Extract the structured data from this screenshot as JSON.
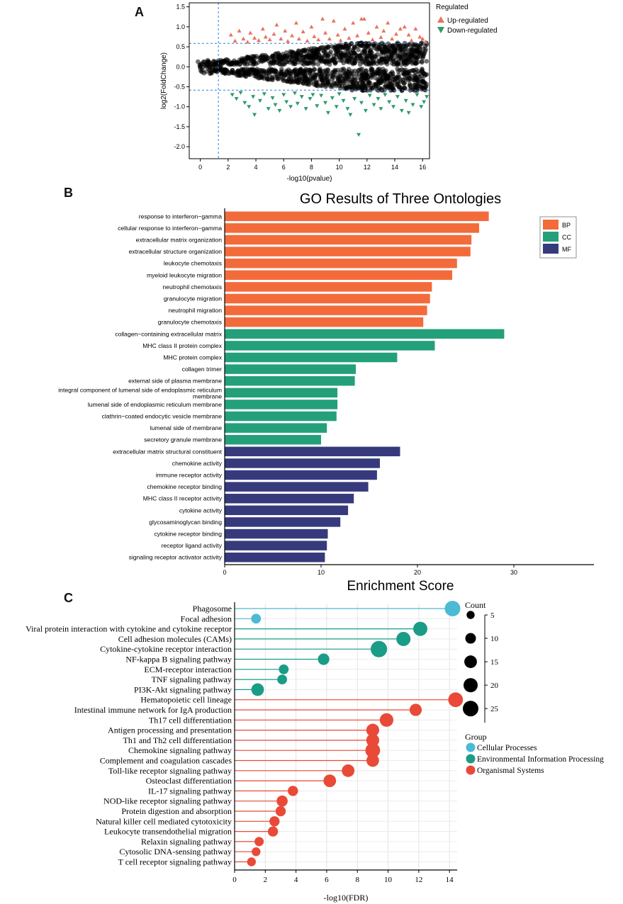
{
  "panel_labels": {
    "a": "A",
    "b": "B",
    "c": "C"
  },
  "chart_data": [
    {
      "id": "A",
      "type": "scatter",
      "title": "",
      "xlabel": "-log10(pvalue)",
      "ylabel": "log2(FoldChange)",
      "xlim": [
        -0.8,
        16.5
      ],
      "ylim": [
        -2.3,
        1.6
      ],
      "xticks": [
        0,
        2,
        4,
        6,
        8,
        10,
        12,
        14,
        16
      ],
      "yticks": [
        1.5,
        1.0,
        0.5,
        0.0,
        -0.5,
        -1.0,
        -1.5,
        -2.0
      ],
      "x_threshold": 1.3,
      "y_thresholds": [
        0.585,
        -0.585
      ],
      "legend_title": "Regulated",
      "legend": [
        {
          "label": "Up-regulated",
          "color": "#e8735f",
          "marker": "triangle-up"
        },
        {
          "label": "Down-regulated",
          "color": "#2e9a6b",
          "marker": "triangle-down"
        }
      ],
      "not_significant_color": "#000000",
      "up_points": [
        [
          2.2,
          0.8
        ],
        [
          2.5,
          0.65
        ],
        [
          2.8,
          0.9
        ],
        [
          3.1,
          0.7
        ],
        [
          3.4,
          0.62
        ],
        [
          3.6,
          0.85
        ],
        [
          3.9,
          0.72
        ],
        [
          4.2,
          0.66
        ],
        [
          4.5,
          0.95
        ],
        [
          4.7,
          0.75
        ],
        [
          5.0,
          0.68
        ],
        [
          5.3,
          0.82
        ],
        [
          5.5,
          1.05
        ],
        [
          5.8,
          0.7
        ],
        [
          6.1,
          0.9
        ],
        [
          6.3,
          0.64
        ],
        [
          6.6,
          0.78
        ],
        [
          6.9,
          1.1
        ],
        [
          7.1,
          0.7
        ],
        [
          7.4,
          0.88
        ],
        [
          7.7,
          0.65
        ],
        [
          8.0,
          1.0
        ],
        [
          8.2,
          0.76
        ],
        [
          8.5,
          0.68
        ],
        [
          8.8,
          1.2
        ],
        [
          9.0,
          0.85
        ],
        [
          9.3,
          0.7
        ],
        [
          9.6,
          1.15
        ],
        [
          9.9,
          0.8
        ],
        [
          10.1,
          0.66
        ],
        [
          10.4,
          0.95
        ],
        [
          10.7,
          0.72
        ],
        [
          11.0,
          1.1
        ],
        [
          11.3,
          0.78
        ],
        [
          11.6,
          1.2
        ],
        [
          11.8,
          1.2
        ],
        [
          12.1,
          0.85
        ],
        [
          12.4,
          0.68
        ],
        [
          12.7,
          1.0
        ],
        [
          13.0,
          0.74
        ],
        [
          13.2,
          0.9
        ],
        [
          13.5,
          1.1
        ],
        [
          13.8,
          0.7
        ],
        [
          14.1,
          0.82
        ],
        [
          14.4,
          0.95
        ],
        [
          14.7,
          1.0
        ],
        [
          15.0,
          0.8
        ],
        [
          15.2,
          0.66
        ],
        [
          15.5,
          0.95
        ],
        [
          15.8,
          0.75
        ],
        [
          16.0,
          0.7
        ],
        [
          16.2,
          0.62
        ]
      ],
      "down_points": [
        [
          2.3,
          -0.7
        ],
        [
          2.6,
          -0.8
        ],
        [
          2.9,
          -0.65
        ],
        [
          3.2,
          -0.9
        ],
        [
          3.5,
          -1.0
        ],
        [
          3.8,
          -0.75
        ],
        [
          3.9,
          -1.2
        ],
        [
          4.3,
          -0.85
        ],
        [
          4.6,
          -0.68
        ],
        [
          4.9,
          -1.05
        ],
        [
          5.2,
          -0.78
        ],
        [
          5.4,
          -0.95
        ],
        [
          5.7,
          -1.1
        ],
        [
          6.0,
          -0.7
        ],
        [
          6.2,
          -0.88
        ],
        [
          6.5,
          -1.0
        ],
        [
          6.8,
          -0.66
        ],
        [
          7.0,
          -0.92
        ],
        [
          7.3,
          -0.75
        ],
        [
          7.6,
          -1.05
        ],
        [
          7.9,
          -0.8
        ],
        [
          8.1,
          -0.7
        ],
        [
          8.4,
          -0.98
        ],
        [
          8.7,
          -0.72
        ],
        [
          9.0,
          -0.9
        ],
        [
          9.2,
          -1.15
        ],
        [
          9.5,
          -0.78
        ],
        [
          9.8,
          -1.0
        ],
        [
          10.0,
          -0.68
        ],
        [
          10.3,
          -0.85
        ],
        [
          10.6,
          -1.05
        ],
        [
          10.8,
          -1.2
        ],
        [
          11.1,
          -0.8
        ],
        [
          11.4,
          -1.7
        ],
        [
          11.6,
          -0.9
        ],
        [
          11.9,
          -1.1
        ],
        [
          12.2,
          -0.72
        ],
        [
          12.5,
          -0.95
        ],
        [
          12.8,
          -0.8
        ],
        [
          13.0,
          -1.05
        ],
        [
          13.3,
          -0.7
        ],
        [
          13.6,
          -0.88
        ],
        [
          13.9,
          -1.0
        ],
        [
          14.2,
          -0.75
        ],
        [
          14.5,
          -1.1
        ],
        [
          14.8,
          -0.85
        ],
        [
          15.0,
          -1.15
        ],
        [
          15.3,
          -0.95
        ],
        [
          15.6,
          -0.7
        ],
        [
          15.9,
          -1.0
        ],
        [
          16.1,
          -0.88
        ],
        [
          16.3,
          -0.75
        ]
      ]
    },
    {
      "id": "B",
      "type": "bar",
      "orientation": "horizontal",
      "title": "GO Results of Three Ontologies",
      "xlabel": "Enrichment Score",
      "ylabel": "",
      "xlim": [
        0,
        30
      ],
      "xticks": [
        0,
        10,
        20,
        30
      ],
      "legend": [
        {
          "label": "BP",
          "color": "#f36b3b"
        },
        {
          "label": "CC",
          "color": "#23a07a"
        },
        {
          "label": "MF",
          "color": "#363a7c"
        }
      ],
      "bars": [
        {
          "label": "response to interferon−gamma",
          "value": 27.4,
          "group": "BP"
        },
        {
          "label": "cellular response to interferon−gamma",
          "value": 26.4,
          "group": "BP"
        },
        {
          "label": "extracellular matrix organization",
          "value": 25.6,
          "group": "BP"
        },
        {
          "label": "extracellular structure organization",
          "value": 25.5,
          "group": "BP"
        },
        {
          "label": "leukocyte chemotaxis",
          "value": 24.1,
          "group": "BP"
        },
        {
          "label": "myeloid leukocyte migration",
          "value": 23.6,
          "group": "BP"
        },
        {
          "label": "neutrophil chemotaxis",
          "value": 21.5,
          "group": "BP"
        },
        {
          "label": "granulocyte migration",
          "value": 21.3,
          "group": "BP"
        },
        {
          "label": "neutrophil migration",
          "value": 21.0,
          "group": "BP"
        },
        {
          "label": "granulocyte chemotaxis",
          "value": 20.6,
          "group": "BP"
        },
        {
          "label": "collagen−containing extracellular matrix",
          "value": 29.0,
          "group": "CC"
        },
        {
          "label": "MHC class II protein complex",
          "value": 21.8,
          "group": "CC"
        },
        {
          "label": "MHC protein complex",
          "value": 17.9,
          "group": "CC"
        },
        {
          "label": "collagen trimer",
          "value": 13.6,
          "group": "CC"
        },
        {
          "label": "external side of plasma membrane",
          "value": 13.5,
          "group": "CC"
        },
        {
          "label": "integral component of lumenal side of endoplasmic reticulum membrane",
          "value": 11.7,
          "group": "CC"
        },
        {
          "label": "lumenal side of endoplasmic reticulum membrane",
          "value": 11.7,
          "group": "CC"
        },
        {
          "label": "clathrin−coated endocytic vesicle membrane",
          "value": 11.6,
          "group": "CC"
        },
        {
          "label": "lumenal side of membrane",
          "value": 10.6,
          "group": "CC"
        },
        {
          "label": "secretory granule membrane",
          "value": 10.0,
          "group": "CC"
        },
        {
          "label": "extracellular matrix structural constituent",
          "value": 18.2,
          "group": "MF"
        },
        {
          "label": "chemokine activity",
          "value": 16.1,
          "group": "MF"
        },
        {
          "label": "immune receptor activity",
          "value": 15.8,
          "group": "MF"
        },
        {
          "label": "chemokine receptor binding",
          "value": 14.9,
          "group": "MF"
        },
        {
          "label": "MHC class II receptor activity",
          "value": 13.4,
          "group": "MF"
        },
        {
          "label": "cytokine activity",
          "value": 12.8,
          "group": "MF"
        },
        {
          "label": "glycosaminoglycan binding",
          "value": 12.0,
          "group": "MF"
        },
        {
          "label": "cytokine receptor binding",
          "value": 10.7,
          "group": "MF"
        },
        {
          "label": "receptor ligand activity",
          "value": 10.6,
          "group": "MF"
        },
        {
          "label": "signaling receptor activator activity",
          "value": 10.4,
          "group": "MF"
        }
      ]
    },
    {
      "id": "C",
      "type": "scatter",
      "subtype": "lollipop",
      "title": "",
      "xlabel": "-log10(FDR)",
      "ylabel": "",
      "xlim": [
        0,
        14.5
      ],
      "xticks": [
        0,
        2,
        4,
        6,
        8,
        10,
        12,
        14
      ],
      "grid": true,
      "size_legend_title": "Count",
      "size_legend": [
        5,
        10,
        15,
        20,
        25
      ],
      "group_legend_title": "Group",
      "groups": [
        {
          "label": "Cellular Processes",
          "color": "#4cbad5"
        },
        {
          "label": "Environmental Information Processing",
          "color": "#1a9c86"
        },
        {
          "label": "Organismal Systems",
          "color": "#e84a37"
        }
      ],
      "points": [
        {
          "label": "Phagosome",
          "value": 14.2,
          "count": 25,
          "group": "Cellular Processes"
        },
        {
          "label": "Focal adhesion",
          "value": 1.4,
          "count": 8,
          "group": "Cellular Processes"
        },
        {
          "label": "Viral protein interaction with cytokine and cytokine receptor",
          "value": 12.1,
          "count": 20,
          "group": "Environmental Information Processing"
        },
        {
          "label": "Cell adhesion molecules (CAMs)",
          "value": 11.0,
          "count": 20,
          "group": "Environmental Information Processing"
        },
        {
          "label": "Cytokine-cytokine receptor interaction",
          "value": 9.4,
          "count": 28,
          "group": "Environmental Information Processing"
        },
        {
          "label": "NF-kappa B signaling pathway",
          "value": 5.8,
          "count": 12,
          "group": "Environmental Information Processing"
        },
        {
          "label": "ECM-receptor interaction",
          "value": 3.2,
          "count": 8,
          "group": "Environmental Information Processing"
        },
        {
          "label": "TNF signaling pathway",
          "value": 3.1,
          "count": 8,
          "group": "Environmental Information Processing"
        },
        {
          "label": "PI3K-Akt signaling pathway",
          "value": 1.5,
          "count": 15,
          "group": "Environmental Information Processing"
        },
        {
          "label": "Hematopoietic cell lineage",
          "value": 14.4,
          "count": 22,
          "group": "Organismal Systems"
        },
        {
          "label": "Intestinal immune network for IgA production",
          "value": 11.8,
          "count": 14,
          "group": "Organismal Systems"
        },
        {
          "label": "Th17 cell differentiation",
          "value": 9.9,
          "count": 18,
          "group": "Organismal Systems"
        },
        {
          "label": "Antigen processing and presentation",
          "value": 9.0,
          "count": 16,
          "group": "Organismal Systems"
        },
        {
          "label": "Th1 and Th2 cell differentiation",
          "value": 9.0,
          "count": 16,
          "group": "Organismal Systems"
        },
        {
          "label": "Chemokine signaling pathway",
          "value": 9.0,
          "count": 22,
          "group": "Organismal Systems"
        },
        {
          "label": "Complement and coagulation cascades",
          "value": 9.0,
          "count": 15,
          "group": "Organismal Systems"
        },
        {
          "label": "Toll-like receptor signaling pathway",
          "value": 7.4,
          "count": 15,
          "group": "Organismal Systems"
        },
        {
          "label": "Osteoclast differentiation",
          "value": 6.2,
          "count": 15,
          "group": "Organismal Systems"
        },
        {
          "label": "IL-17 signaling pathway",
          "value": 3.8,
          "count": 9,
          "group": "Organismal Systems"
        },
        {
          "label": "NOD-like receptor signaling pathway",
          "value": 3.1,
          "count": 11,
          "group": "Organismal Systems"
        },
        {
          "label": "Protein digestion and absorption",
          "value": 3.0,
          "count": 9,
          "group": "Organismal Systems"
        },
        {
          "label": "Natural killer cell mediated cytotoxicity",
          "value": 2.6,
          "count": 9,
          "group": "Organismal Systems"
        },
        {
          "label": "Leukocyte transendothelial migration",
          "value": 2.5,
          "count": 9,
          "group": "Organismal Systems"
        },
        {
          "label": "Relaxin signaling pathway",
          "value": 1.6,
          "count": 7,
          "group": "Organismal Systems"
        },
        {
          "label": "Cytosolic DNA-sensing pathway",
          "value": 1.4,
          "count": 6,
          "group": "Organismal Systems"
        },
        {
          "label": "T cell receptor signaling pathway",
          "value": 1.1,
          "count": 6,
          "group": "Organismal Systems"
        }
      ]
    }
  ]
}
